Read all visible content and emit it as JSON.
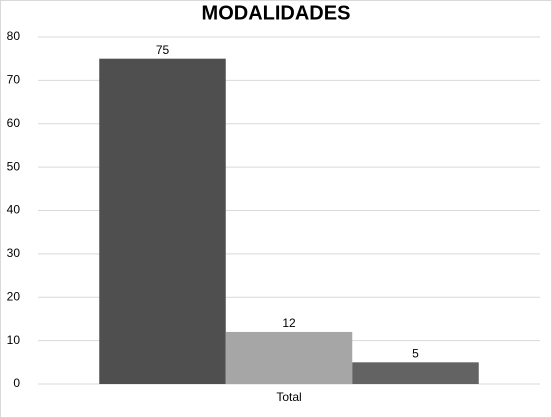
{
  "chart_data": {
    "type": "bar",
    "title": "MODALIDADES",
    "categories": [
      "Total"
    ],
    "series": [
      {
        "color": "#4f4f4f",
        "values": [
          75
        ]
      },
      {
        "color": "#a6a6a6",
        "values": [
          12
        ]
      },
      {
        "color": "#636363",
        "values": [
          5
        ]
      }
    ],
    "ylim": [
      0,
      80
    ],
    "yticks": [
      0,
      10,
      20,
      30,
      40,
      50,
      60,
      70,
      80
    ],
    "grid": true,
    "data_labels": true
  }
}
